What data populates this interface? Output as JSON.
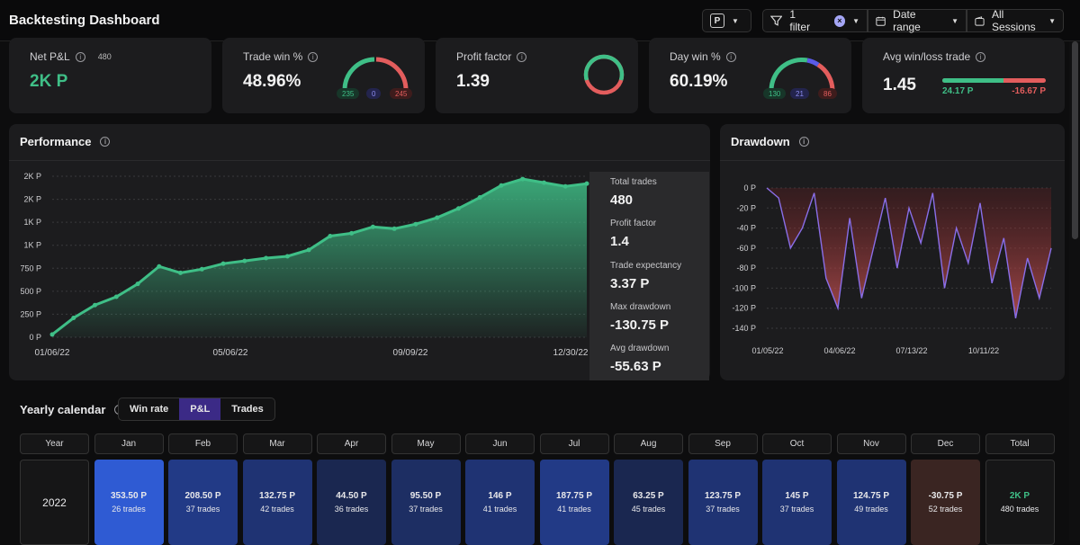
{
  "header": {
    "title": "Backtesting Dashboard",
    "account_badge": "P",
    "filter_label": "1 filter",
    "date_range_label": "Date range",
    "sessions_label": "All Sessions"
  },
  "kpis": {
    "net_pnl": {
      "label": "Net P&L",
      "count": "480",
      "value": "2K P"
    },
    "trade_win": {
      "label": "Trade win %",
      "value": "48.96%",
      "wins": "235",
      "breakeven": "0",
      "losses": "245"
    },
    "profit_factor": {
      "label": "Profit factor",
      "value": "1.39"
    },
    "day_win": {
      "label": "Day win %",
      "value": "60.19%",
      "wins": "130",
      "breakeven": "21",
      "losses": "86"
    },
    "avg_win_loss": {
      "label": "Avg win/loss trade",
      "value": "1.45",
      "avg_win": "24.17 P",
      "avg_loss": "-16.67 P",
      "win_fraction": 0.59
    }
  },
  "colors": {
    "green": "#3fbf87",
    "red": "#e35d5d",
    "blue": "#5a5be8",
    "purple": "#7b5cd6",
    "accent": "#3b2a86"
  },
  "performance": {
    "title": "Performance",
    "stats": [
      {
        "label": "Total trades",
        "value": "480"
      },
      {
        "label": "Profit factor",
        "value": "1.4"
      },
      {
        "label": "Trade expectancy",
        "value": "3.37 P"
      },
      {
        "label": "Max drawdown",
        "value": "-130.75 P"
      },
      {
        "label": "Avg drawdown",
        "value": "-55.63 P"
      }
    ]
  },
  "drawdown": {
    "title": "Drawdown"
  },
  "chart_data": [
    {
      "type": "area",
      "title": "Performance",
      "y_tick_labels": [
        "2K P",
        "2K P",
        "1K P",
        "1K P",
        "750 P",
        "500 P",
        "250 P",
        "0 P"
      ],
      "x_tick_labels": [
        "01/06/22",
        "05/06/22",
        "09/09/22",
        "12/30/22"
      ],
      "ylim": [
        0,
        1750
      ],
      "x": [
        "01/06/22",
        "01/20/22",
        "02/05/22",
        "02/20/22",
        "03/05/22",
        "03/15/22",
        "03/25/22",
        "04/05/22",
        "04/20/22",
        "05/06/22",
        "05/20/22",
        "06/05/22",
        "06/20/22",
        "07/05/22",
        "07/20/22",
        "08/05/22",
        "08/20/22",
        "09/09/22",
        "09/25/22",
        "10/10/22",
        "10/25/22",
        "11/10/22",
        "11/25/22",
        "12/10/22",
        "12/20/22",
        "12/30/22"
      ],
      "values": [
        30,
        210,
        350,
        440,
        580,
        770,
        700,
        740,
        800,
        830,
        860,
        880,
        950,
        1100,
        1130,
        1200,
        1180,
        1230,
        1300,
        1400,
        1520,
        1650,
        1720,
        1680,
        1640,
        1670
      ]
    },
    {
      "type": "line",
      "title": "Drawdown",
      "y_tick_labels": [
        "0 P",
        "-20 P",
        "-40 P",
        "-60 P",
        "-80 P",
        "-100 P",
        "-120 P",
        "-140 P"
      ],
      "x_tick_labels": [
        "01/05/22",
        "04/06/22",
        "07/13/22",
        "10/11/22"
      ],
      "ylim": [
        -140,
        0
      ],
      "x": [
        "01/05/22",
        "01/20/22",
        "02/05/22",
        "02/20/22",
        "03/05/22",
        "03/20/22",
        "04/06/22",
        "04/20/22",
        "05/05/22",
        "05/20/22",
        "06/05/22",
        "06/20/22",
        "07/01/22",
        "07/13/22",
        "07/28/22",
        "08/15/22",
        "09/01/22",
        "09/15/22",
        "10/01/22",
        "10/11/22",
        "10/25/22",
        "11/10/22",
        "11/25/22",
        "12/10/22",
        "12/30/22"
      ],
      "values": [
        0,
        -10,
        -60,
        -40,
        -5,
        -90,
        -120,
        -30,
        -110,
        -60,
        -10,
        -80,
        -20,
        -55,
        -5,
        -100,
        -40,
        -75,
        -15,
        -95,
        -50,
        -130,
        -70,
        -110,
        -60
      ]
    }
  ],
  "calendar": {
    "title": "Yearly calendar",
    "tabs": [
      "Win rate",
      "P&L",
      "Trades"
    ],
    "active_tab": "P&L",
    "headers": [
      "Year",
      "Jan",
      "Feb",
      "Mar",
      "Apr",
      "May",
      "Jun",
      "Jul",
      "Aug",
      "Sep",
      "Oct",
      "Nov",
      "Dec",
      "Total"
    ],
    "year": "2022",
    "months": [
      {
        "value": "353.50 P",
        "trades": "26 trades",
        "color": "#2f5bd3"
      },
      {
        "value": "208.50 P",
        "trades": "37 trades",
        "color": "#223a86"
      },
      {
        "value": "132.75 P",
        "trades": "42 trades",
        "color": "#1f3373"
      },
      {
        "value": "44.50 P",
        "trades": "36 trades",
        "color": "#1a2750"
      },
      {
        "value": "95.50 P",
        "trades": "37 trades",
        "color": "#1d2e63"
      },
      {
        "value": "146 P",
        "trades": "41 trades",
        "color": "#1f3373"
      },
      {
        "value": "187.75 P",
        "trades": "41 trades",
        "color": "#223a86"
      },
      {
        "value": "63.25 P",
        "trades": "45 trades",
        "color": "#1a2750"
      },
      {
        "value": "123.75 P",
        "trades": "37 trades",
        "color": "#1f3373"
      },
      {
        "value": "145 P",
        "trades": "37 trades",
        "color": "#1f3373"
      },
      {
        "value": "124.75 P",
        "trades": "49 trades",
        "color": "#1f3373"
      },
      {
        "value": "-30.75 P",
        "trades": "52 trades",
        "color": "#3a2522"
      }
    ],
    "total": {
      "value": "2K P",
      "trades": "480 trades"
    }
  }
}
